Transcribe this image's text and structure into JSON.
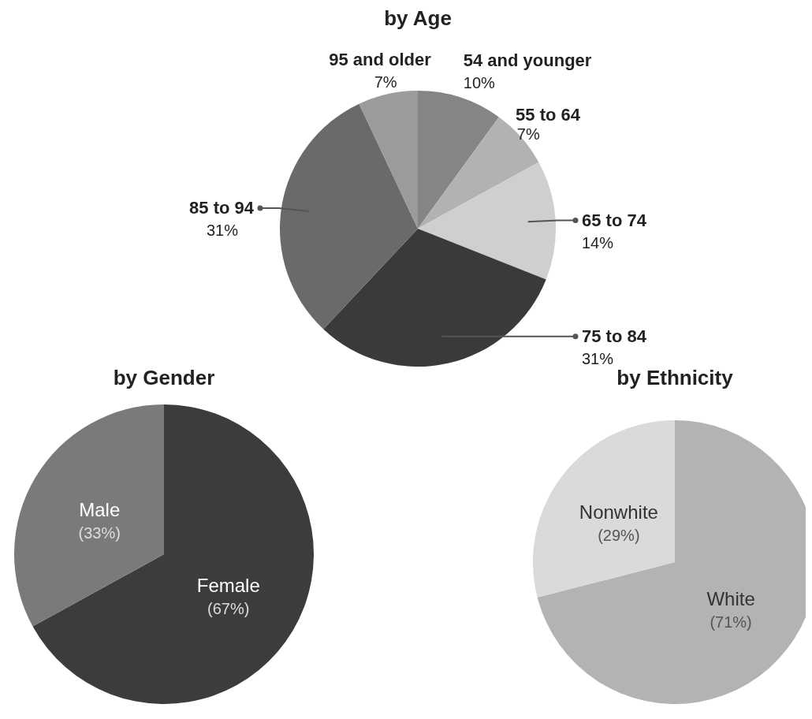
{
  "chart_data": [
    {
      "type": "pie",
      "title": "by Age",
      "categories": [
        "54 and younger",
        "55 to 64",
        "65 to 74",
        "75 to 84",
        "85 to 94",
        "95 and older"
      ],
      "values": [
        10,
        7,
        14,
        31,
        31,
        7
      ],
      "value_labels": [
        "10%",
        "7%",
        "14%",
        "31%",
        "31%",
        "7%"
      ],
      "colors": [
        "#858585",
        "#b2b2b2",
        "#cfcfcf",
        "#3a3a3a",
        "#6a6a6a",
        "#9b9b9b"
      ]
    },
    {
      "type": "pie",
      "title": "by Gender",
      "categories": [
        "Female",
        "Male"
      ],
      "values": [
        67,
        33
      ],
      "value_labels": [
        "(67%)",
        "(33%)"
      ],
      "colors": [
        "#3c3c3c",
        "#7a7a7a"
      ]
    },
    {
      "type": "pie",
      "title": "by Ethnicity",
      "categories": [
        "White",
        "Nonwhite"
      ],
      "values": [
        71,
        29
      ],
      "value_labels": [
        "(71%)",
        "(29%)"
      ],
      "colors": [
        "#b3b3b3",
        "#dadada"
      ]
    }
  ]
}
